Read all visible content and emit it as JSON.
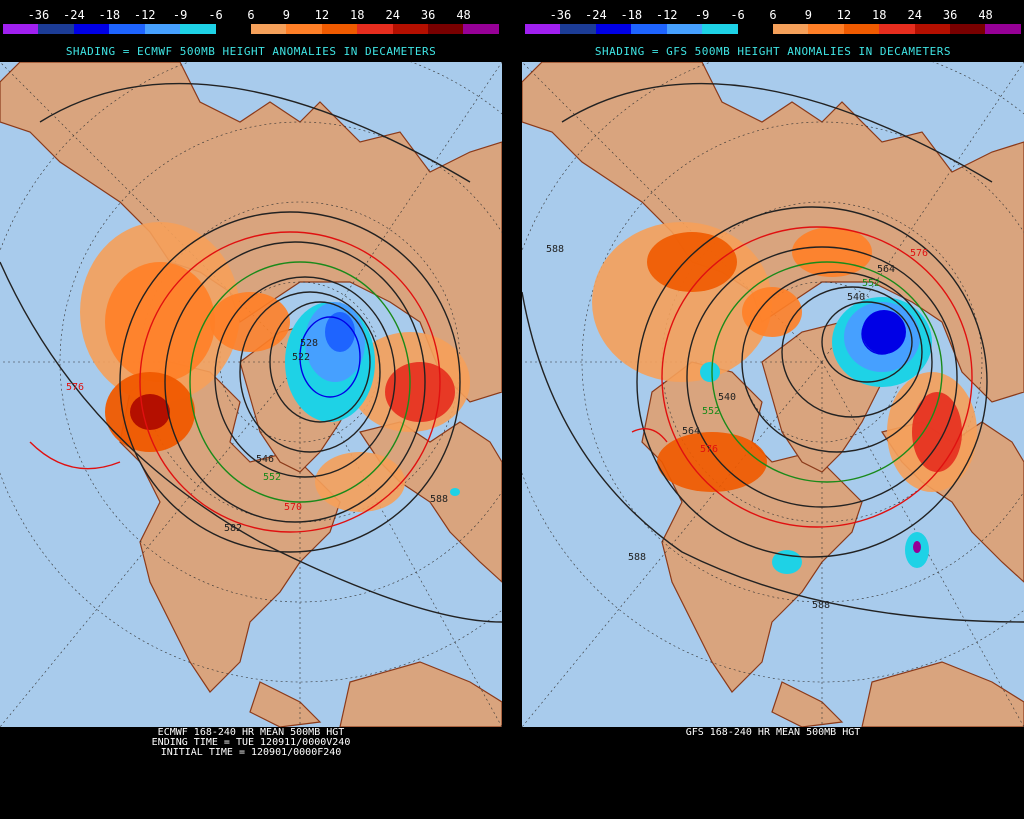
{
  "scale": {
    "labels": [
      "-36",
      "-24",
      "-18",
      "-12",
      "-9",
      "-6",
      "6",
      "9",
      "12",
      "18",
      "24",
      "36",
      "48"
    ],
    "colors": [
      "#a020f0",
      "#1c3c96",
      "#0000e6",
      "#1e64ff",
      "#46a0ff",
      "#1ed2e6",
      "#000000",
      "#f5a05a",
      "#ff7f27",
      "#f05a00",
      "#e62d1e",
      "#b40f00",
      "#780000",
      "#960096"
    ]
  },
  "left": {
    "shading_title": "SHADING = ECMWF 500MB HEIGHT ANOMALIES IN DECAMETERS",
    "caption": [
      "ECMWF 168-240 HR MEAN 500MB HGT",
      "ENDING TIME = TUE 120911/0000V240",
      "INITIAL TIME = 120901/0000F240"
    ],
    "contour_labels": [
      "576",
      "522",
      "528",
      "546",
      "552",
      "570",
      "582",
      "588"
    ]
  },
  "right": {
    "shading_title": "SHADING = GFS 500MB HEIGHT ANOMALIES IN DECAMETERS",
    "caption": [
      "GFS 168-240 HR MEAN 500MB HGT"
    ],
    "contour_labels": [
      "588",
      "576",
      "564",
      "552",
      "540",
      "540",
      "552",
      "564",
      "576",
      "588",
      "588"
    ]
  },
  "colors": {
    "ocean": "#a8cbec",
    "land": "#d9a47e",
    "coast": "#8b3a1a",
    "title_cyan": "#3fe4e4",
    "contour_dark": "#222222",
    "contour_red": "#e01010",
    "contour_green": "#1a8a1a"
  }
}
